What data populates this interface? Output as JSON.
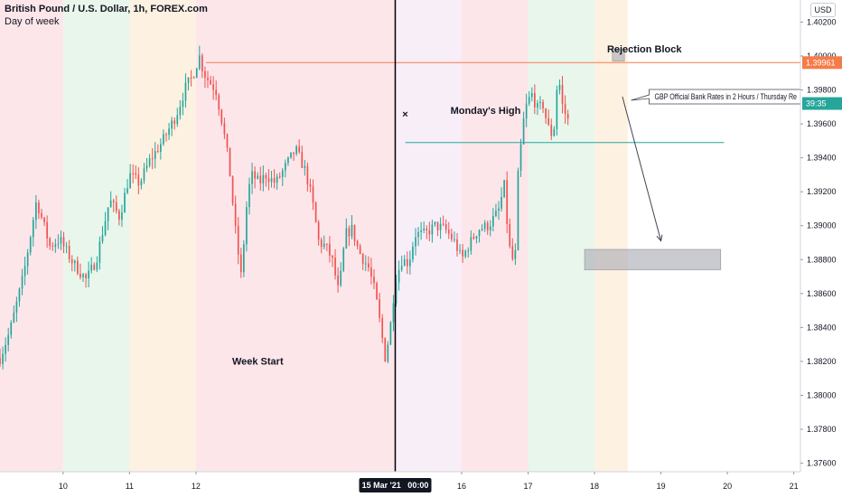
{
  "header": {
    "title": "British Pound / U.S. Dollar, 1h, FOREX.com",
    "subtitle": "Day of week"
  },
  "currency_button": "USD",
  "colors": {
    "up": "#26a69a",
    "down": "#ef5350",
    "resistance": "#f57c4a",
    "monday_high": "#26a69a",
    "zone": "#a9abb3",
    "bg_pink": "#fde6ea",
    "bg_green": "#e9f6ec",
    "bg_orange": "#fdf1e2",
    "bg_lavender": "#f7eef8"
  },
  "chart_data": {
    "type": "candlestick",
    "title": "British Pound / U.S. Dollar, 1h, FOREX.com",
    "y_axis": {
      "ticks": [
        "1.40200",
        "1.40000",
        "1.39800",
        "1.39600",
        "1.39400",
        "1.39200",
        "1.39000",
        "1.38800",
        "1.38600",
        "1.38400",
        "1.38200",
        "1.38000",
        "1.37800",
        "1.37600"
      ],
      "range": [
        1.3755,
        1.4033
      ]
    },
    "x_axis": {
      "ticks": [
        {
          "label": "10",
          "day": 10
        },
        {
          "label": "11",
          "day": 11
        },
        {
          "label": "12",
          "day": 12
        },
        {
          "label": "16",
          "day": 16
        },
        {
          "label": "17",
          "day": 17
        },
        {
          "label": "18",
          "day": 18
        },
        {
          "label": "19",
          "day": 19
        },
        {
          "label": "20",
          "day": 20
        },
        {
          "label": "21",
          "day": 21
        }
      ],
      "highlight_label": "15 Mar '21   00:00",
      "highlight_day": 15,
      "range_days": [
        9.05,
        21.1
      ]
    },
    "day_bands": [
      {
        "start": 9.05,
        "end": 10.0,
        "color": "bg_pink"
      },
      {
        "start": 10.0,
        "end": 11.0,
        "color": "bg_green"
      },
      {
        "start": 11.0,
        "end": 12.0,
        "color": "bg_orange"
      },
      {
        "start": 12.0,
        "end": 15.0,
        "color": "bg_pink"
      },
      {
        "start": 15.0,
        "end": 16.0,
        "color": "bg_lavender"
      },
      {
        "start": 16.0,
        "end": 17.0,
        "color": "bg_pink"
      },
      {
        "start": 17.0,
        "end": 18.0,
        "color": "bg_green"
      },
      {
        "start": 18.0,
        "end": 18.5,
        "color": "bg_orange"
      }
    ],
    "price_path": [
      [
        9.05,
        1.3822
      ],
      [
        9.2,
        1.3838
      ],
      [
        9.4,
        1.387
      ],
      [
        9.6,
        1.3915
      ],
      [
        9.8,
        1.3888
      ],
      [
        9.95,
        1.3892
      ],
      [
        10.15,
        1.3878
      ],
      [
        10.35,
        1.3868
      ],
      [
        10.5,
        1.388
      ],
      [
        10.7,
        1.3915
      ],
      [
        10.85,
        1.3905
      ],
      [
        11.0,
        1.393
      ],
      [
        11.15,
        1.3925
      ],
      [
        11.3,
        1.3938
      ],
      [
        11.5,
        1.395
      ],
      [
        11.7,
        1.3965
      ],
      [
        11.85,
        1.3982
      ],
      [
        11.95,
        1.3988
      ],
      [
        12.05,
        1.4
      ],
      [
        12.12,
        1.399
      ],
      [
        12.2,
        1.3985
      ],
      [
        12.3,
        1.398
      ],
      [
        12.4,
        1.396
      ],
      [
        12.5,
        1.3935
      ],
      [
        12.6,
        1.3895
      ],
      [
        12.68,
        1.387
      ],
      [
        12.78,
        1.392
      ],
      [
        12.85,
        1.393
      ],
      [
        12.95,
        1.3925
      ],
      [
        13.05,
        1.393
      ],
      [
        13.2,
        1.3925
      ],
      [
        13.35,
        1.3935
      ],
      [
        13.5,
        1.3945
      ],
      [
        13.65,
        1.3932
      ],
      [
        13.75,
        1.3915
      ],
      [
        13.85,
        1.389
      ],
      [
        13.95,
        1.3888
      ],
      [
        14.05,
        1.388
      ],
      [
        14.15,
        1.386
      ],
      [
        14.25,
        1.3895
      ],
      [
        14.35,
        1.3898
      ],
      [
        14.45,
        1.3885
      ],
      [
        14.6,
        1.3875
      ],
      [
        14.7,
        1.386
      ],
      [
        14.78,
        1.384
      ],
      [
        14.85,
        1.3822
      ],
      [
        14.92,
        1.3838
      ],
      [
        15.0,
        1.3868
      ],
      [
        15.1,
        1.388
      ],
      [
        15.2,
        1.3878
      ],
      [
        15.3,
        1.3895
      ],
      [
        15.45,
        1.3895
      ],
      [
        15.6,
        1.39
      ],
      [
        15.75,
        1.3898
      ],
      [
        15.9,
        1.389
      ],
      [
        16.0,
        1.388
      ],
      [
        16.1,
        1.3888
      ],
      [
        16.25,
        1.3898
      ],
      [
        16.4,
        1.39
      ],
      [
        16.55,
        1.3908
      ],
      [
        16.65,
        1.3925
      ],
      [
        16.7,
        1.389
      ],
      [
        16.8,
        1.3875
      ],
      [
        16.85,
        1.393
      ],
      [
        16.9,
        1.395
      ],
      [
        16.95,
        1.3968
      ],
      [
        17.05,
        1.3978
      ],
      [
        17.15,
        1.3968
      ],
      [
        17.22,
        1.3972
      ],
      [
        17.3,
        1.3958
      ],
      [
        17.38,
        1.3952
      ],
      [
        17.45,
        1.399
      ],
      [
        17.52,
        1.397
      ],
      [
        17.6,
        1.3962
      ]
    ],
    "horizontal_lines": [
      {
        "name": "rejection-line",
        "value": 1.39961,
        "from_day": 12.15,
        "to_day": 21.1,
        "color": "resistance"
      },
      {
        "name": "monday-high-line",
        "value": 1.3949,
        "from_day": 15.15,
        "to_day": 19.95,
        "color": "monday_high"
      }
    ],
    "zones": [
      {
        "name": "rejection-block",
        "from_day": 18.27,
        "to_day": 18.45,
        "low": 1.3997,
        "high": 1.4004
      },
      {
        "name": "target-zone",
        "from_day": 17.85,
        "to_day": 19.9,
        "low": 1.3874,
        "high": 1.3886
      }
    ],
    "vertical_line": {
      "day": 15.0,
      "color": "#000000"
    },
    "price_tags": [
      {
        "name": "last-high-tag",
        "label": "1.39961",
        "value": 1.39961,
        "bg": "#f57c4a",
        "fg": "#ffffff"
      },
      {
        "name": "countdown-tag",
        "label": "39:35",
        "value": 1.3972,
        "bg": "#26a69a",
        "fg": "#ffffff"
      }
    ],
    "annotations": [
      {
        "name": "rejection-block-label",
        "text": "Rejection Block",
        "day": 18.75,
        "value": 1.4002
      },
      {
        "name": "monday-high-label",
        "text": "Monday's High",
        "day": 16.36,
        "value": 1.3966
      },
      {
        "name": "week-start-label",
        "text": "Week Start",
        "day": 12.93,
        "value": 1.3818
      }
    ],
    "cross_marker": {
      "day": 15.15,
      "value": 1.3966,
      "symbol": "×"
    },
    "callout": {
      "text": "GBP Official Bank Rates in 2 Hours / Thursday Re",
      "day": 18.55,
      "value": 1.3976
    },
    "arrow": {
      "from_day": 18.42,
      "from_value": 1.3976,
      "to_day": 19.0,
      "to_value": 1.3891
    }
  }
}
